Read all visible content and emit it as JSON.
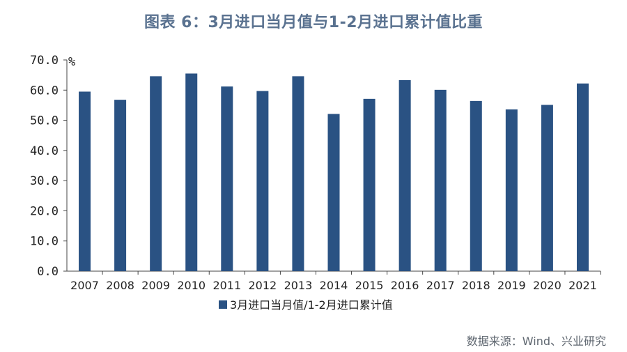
{
  "page": {
    "title": "图表 6：3月进口当月值与1-2月进口累计值比重",
    "source": "数据来源：Wind、兴业研究"
  },
  "chart_data": {
    "type": "bar",
    "title": "图表 6：3月进口当月值与1-2月进口累计值比重",
    "unit": "%",
    "categories": [
      "2007",
      "2008",
      "2009",
      "2010",
      "2011",
      "2012",
      "2013",
      "2014",
      "2015",
      "2016",
      "2017",
      "2018",
      "2019",
      "2020",
      "2021"
    ],
    "series": [
      {
        "name": "3月进口当月值/1-2月进口累计值",
        "color": "#2a5283",
        "values": [
          59.5,
          56.8,
          64.6,
          65.5,
          61.2,
          59.7,
          64.6,
          52.1,
          57.1,
          63.3,
          60.1,
          56.4,
          53.6,
          55.1,
          62.2
        ]
      }
    ],
    "ylim": [
      0,
      70
    ],
    "yticks": [
      0,
      10,
      20,
      30,
      40,
      50,
      60,
      70
    ],
    "ytick_labels": [
      "0.0",
      "10.0",
      "20.0",
      "30.0",
      "40.0",
      "50.0",
      "60.0",
      "70.0"
    ],
    "grid": false,
    "legend": "bottom-center"
  }
}
